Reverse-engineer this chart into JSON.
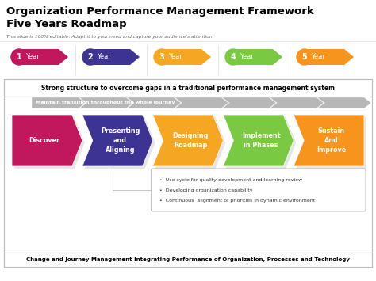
{
  "title_line1": "Organization Performance Management Framework",
  "title_line2": "Five Years Roadmap",
  "subtitle": "This slide is 100% editable. Adapt it to your need and capture your audience's attention.",
  "top_label": "Strong structure to overcome gaps in a traditional performance management system",
  "bottom_label": "Change and Journey Management Integrating Performance of Organization, Processes and Technology",
  "transition_label": "Maintain transition throughout the whole journey",
  "year_numbers": [
    "1",
    "2",
    "3",
    "4",
    "5"
  ],
  "year_colors": [
    "#C0175D",
    "#3D3393",
    "#F5A623",
    "#7AC943",
    "#F7941D"
  ],
  "arrow_labels": [
    "Discover",
    "Presenting\nand\nAligning",
    "Designing\nRoadmap",
    "Implement\nin Phases",
    "Sustain\nAnd\nImprove"
  ],
  "arrow_colors": [
    "#C0175D",
    "#3D3393",
    "#F5A623",
    "#7AC943",
    "#F7941D"
  ],
  "bullet_points": [
    "Use cycle for quality development and learning review",
    "Developing organization capability",
    "Continuous  alignment of priorities in dynamic environment"
  ],
  "bg_color": "#FFFFFF",
  "gray_color": "#AAAAAA",
  "gray_light": "#CCCCCC",
  "gray_chevron": "#B0B0B0"
}
